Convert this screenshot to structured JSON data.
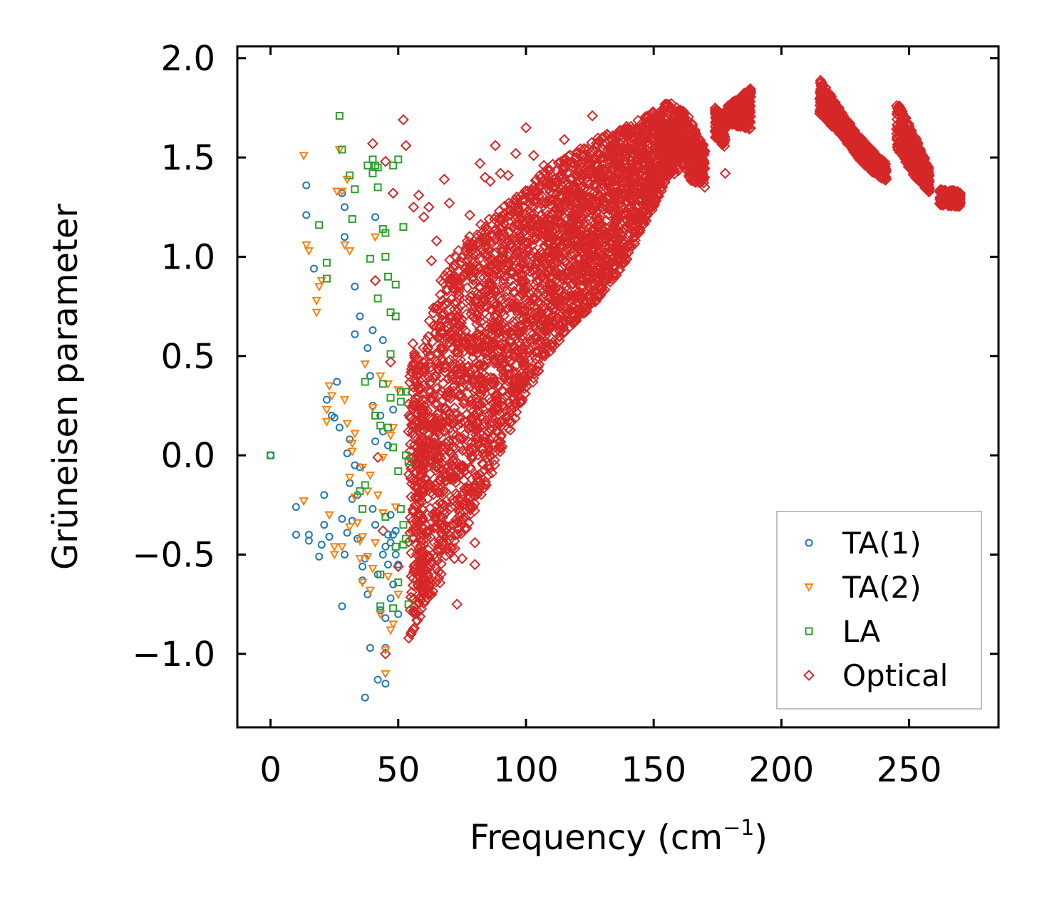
{
  "chart_data": {
    "type": "scatter",
    "title": "",
    "xlabel": "Frequency (cm",
    "xlabel_sup": "−1",
    "xlabel_suffix": ")",
    "ylabel": "Grüneisen parameter",
    "xlim": [
      -13,
      285
    ],
    "ylim": [
      -1.37,
      2.06
    ],
    "xticks": [
      0,
      50,
      100,
      150,
      200,
      250
    ],
    "xtick_labels": [
      "0",
      "50",
      "100",
      "150",
      "200",
      "250"
    ],
    "yticks": [
      -1.0,
      -0.5,
      0.0,
      0.5,
      1.0,
      1.5,
      2.0
    ],
    "ytick_labels": [
      "−1.0",
      "−0.5",
      "0.0",
      "0.5",
      "1.0",
      "1.5",
      "2.0"
    ],
    "grid": false,
    "legend_position": "bottom-right",
    "series": [
      {
        "name": "TA(1)",
        "marker": "circle",
        "color": "#1f77b4",
        "points": [
          [
            0,
            0
          ],
          [
            10,
            -0.26
          ],
          [
            10,
            -0.4
          ],
          [
            14,
            1.36
          ],
          [
            14,
            1.21
          ],
          [
            15,
            -0.4
          ],
          [
            15,
            -0.43
          ],
          [
            17,
            0.94
          ],
          [
            19,
            -0.51
          ],
          [
            20,
            -0.45
          ],
          [
            21,
            -0.2
          ],
          [
            21,
            -0.35
          ],
          [
            22,
            0.28
          ],
          [
            23,
            -0.41
          ],
          [
            24,
            0.2
          ],
          [
            25,
            0.19
          ],
          [
            26,
            0.37
          ],
          [
            27,
            0.14
          ],
          [
            28,
            -0.32
          ],
          [
            28,
            1.32
          ],
          [
            28,
            -0.76
          ],
          [
            29,
            1.25
          ],
          [
            29,
            1.1
          ],
          [
            29,
            -0.5
          ],
          [
            30,
            0.01
          ],
          [
            30,
            -0.39
          ],
          [
            31,
            0.08
          ],
          [
            31,
            -0.14
          ],
          [
            32,
            -0.33
          ],
          [
            32,
            -0.22
          ],
          [
            33,
            -0.05
          ],
          [
            33,
            0.85
          ],
          [
            33,
            0.61
          ],
          [
            34,
            -0.2
          ],
          [
            34,
            -0.42
          ],
          [
            35,
            0.7
          ],
          [
            35,
            -0.06
          ],
          [
            36,
            -0.56
          ],
          [
            36,
            -0.63
          ],
          [
            37,
            -1.22
          ],
          [
            37,
            -0.52
          ],
          [
            38,
            0.54
          ],
          [
            38,
            -0.7
          ],
          [
            39,
            0.4
          ],
          [
            39,
            -0.97
          ],
          [
            40,
            0.25
          ],
          [
            40,
            0.63
          ],
          [
            40,
            -0.27
          ],
          [
            41,
            1.2
          ],
          [
            41,
            0.07
          ],
          [
            41,
            -0.35
          ],
          [
            42,
            -0.6
          ],
          [
            42,
            -1.13
          ],
          [
            43,
            0.2
          ],
          [
            43,
            -0.78
          ],
          [
            44,
            0.58
          ],
          [
            44,
            -0.5
          ],
          [
            44,
            0.12
          ],
          [
            45,
            -0.46
          ],
          [
            45,
            -0.82
          ],
          [
            45,
            -1.15
          ],
          [
            45,
            -0.97
          ],
          [
            46,
            -0.4
          ],
          [
            46,
            -0.55
          ],
          [
            46,
            0.05
          ],
          [
            47,
            -0.3
          ],
          [
            47,
            -0.44
          ],
          [
            47,
            -0.72
          ],
          [
            48,
            -0.4
          ],
          [
            48,
            -0.65
          ],
          [
            48,
            0.23
          ],
          [
            49,
            -0.38
          ],
          [
            49,
            -0.5
          ],
          [
            50,
            -0.55
          ],
          [
            50,
            -0.8
          ]
        ]
      },
      {
        "name": "TA(2)",
        "marker": "triangle-down",
        "color": "#ff7f0e",
        "points": [
          [
            13,
            1.51
          ],
          [
            13,
            -0.23
          ],
          [
            14,
            1.06
          ],
          [
            15,
            1.03
          ],
          [
            18,
            0.72
          ],
          [
            18,
            0.78
          ],
          [
            19,
            0.85
          ],
          [
            20,
            0.88
          ],
          [
            22,
            0.17
          ],
          [
            22,
            0.23
          ],
          [
            23,
            0.35
          ],
          [
            23,
            -0.3
          ],
          [
            24,
            0.3
          ],
          [
            25,
            -0.5
          ],
          [
            25,
            -0.46
          ],
          [
            26,
            1.33
          ],
          [
            27,
            1.54
          ],
          [
            28,
            -0.46
          ],
          [
            28,
            1.33
          ],
          [
            29,
            1.06
          ],
          [
            29,
            0.28
          ],
          [
            30,
            0.16
          ],
          [
            30,
            1.39
          ],
          [
            31,
            -0.11
          ],
          [
            31,
            1.03
          ],
          [
            31,
            -0.36
          ],
          [
            32,
            0.02
          ],
          [
            32,
            0.06
          ],
          [
            33,
            0.11
          ],
          [
            33,
            -0.21
          ],
          [
            34,
            -0.34
          ],
          [
            35,
            -0.43
          ],
          [
            35,
            -0.52
          ],
          [
            36,
            -0.41
          ],
          [
            36,
            -0.06
          ],
          [
            36,
            -0.64
          ],
          [
            37,
            0.46
          ],
          [
            38,
            -0.51
          ],
          [
            38,
            -0.18
          ],
          [
            39,
            -0.1
          ],
          [
            39,
            -0.68
          ],
          [
            40,
            0.24
          ],
          [
            40,
            -0.57
          ],
          [
            41,
            -0.44
          ],
          [
            41,
            1.1
          ],
          [
            42,
            -0.2
          ],
          [
            43,
            0.4
          ],
          [
            43,
            -0.8
          ],
          [
            44,
            -0.29
          ],
          [
            44,
            -0.01
          ],
          [
            45,
            -0.98
          ],
          [
            45,
            -1.1
          ],
          [
            46,
            0.36
          ],
          [
            46,
            -0.61
          ],
          [
            47,
            -0.88
          ],
          [
            47,
            0.1
          ],
          [
            48,
            -0.85
          ],
          [
            48,
            0.14
          ],
          [
            49,
            -0.26
          ],
          [
            50,
            0.33
          ],
          [
            50,
            -0.7
          ]
        ]
      },
      {
        "name": "LA",
        "marker": "square",
        "color": "#2ca02c",
        "points": [
          [
            0,
            0
          ],
          [
            19,
            1.16
          ],
          [
            22,
            0.97
          ],
          [
            22,
            0.89
          ],
          [
            27,
            1.71
          ],
          [
            28,
            1.54
          ],
          [
            31,
            1.41
          ],
          [
            32,
            1.19
          ],
          [
            33,
            1.34
          ],
          [
            35,
            -0.18
          ],
          [
            36,
            -0.27
          ],
          [
            37,
            0.37
          ],
          [
            37,
            -0.15
          ],
          [
            38,
            1.46
          ],
          [
            39,
            0.99
          ],
          [
            40,
            1.42
          ],
          [
            40,
            1.49
          ],
          [
            41,
            1.46
          ],
          [
            41,
            0.2
          ],
          [
            42,
            1.45
          ],
          [
            42,
            0.79
          ],
          [
            42,
            1.35
          ],
          [
            43,
            -0.76
          ],
          [
            43,
            0.15
          ],
          [
            43,
            -0.6
          ],
          [
            44,
            1.14
          ],
          [
            44,
            0.36
          ],
          [
            45,
            1.0
          ],
          [
            45,
            -0.31
          ],
          [
            45,
            1.12
          ],
          [
            46,
            0.14
          ],
          [
            46,
            0.9
          ],
          [
            47,
            0.72
          ],
          [
            47,
            0.29
          ],
          [
            47,
            0.51
          ],
          [
            48,
            -0.77
          ],
          [
            48,
            0.04
          ],
          [
            48,
            1.46
          ],
          [
            49,
            0.86
          ],
          [
            49,
            -0.46
          ],
          [
            49,
            0.7
          ],
          [
            50,
            -0.64
          ],
          [
            50,
            1.49
          ],
          [
            50,
            -0.08
          ],
          [
            51,
            0.32
          ],
          [
            51,
            -0.27
          ],
          [
            51,
            0.27
          ],
          [
            52,
            -0.35
          ],
          [
            52,
            -0.45
          ],
          [
            52,
            1.15
          ],
          [
            53,
            0.0
          ],
          [
            53,
            -0.42
          ],
          [
            53,
            0.32
          ],
          [
            54,
            -0.03
          ],
          [
            54,
            -0.75
          ]
        ]
      },
      {
        "name": "Optical",
        "marker": "diamond",
        "color": "#d62728",
        "points": [
          [
            40,
            1.57
          ],
          [
            41,
            0.88
          ],
          [
            42,
            -0.01
          ],
          [
            44,
            -0.38
          ],
          [
            45,
            1.48
          ],
          [
            45,
            -1.0
          ],
          [
            47,
            0.47
          ],
          [
            48,
            1.32
          ],
          [
            50,
            -0.56
          ],
          [
            52,
            1.69
          ],
          [
            53,
            1.56
          ],
          [
            54,
            0.12
          ],
          [
            55,
            -0.9
          ],
          [
            56,
            1.25
          ],
          [
            58,
            1.31
          ],
          [
            60,
            1.2
          ],
          [
            62,
            1.25
          ],
          [
            63,
            0.98
          ],
          [
            65,
            1.08
          ],
          [
            68,
            1.39
          ],
          [
            70,
            1.27
          ],
          [
            72,
            -0.52
          ],
          [
            73,
            -0.75
          ],
          [
            75,
            -0.52
          ],
          [
            78,
            1.21
          ],
          [
            80,
            -0.44
          ],
          [
            80,
            -0.55
          ],
          [
            82,
            1.47
          ],
          [
            84,
            1.4
          ],
          [
            86,
            1.38
          ],
          [
            88,
            1.56
          ],
          [
            90,
            1.42
          ],
          [
            93,
            1.41
          ],
          [
            96,
            1.52
          ],
          [
            100,
            1.65
          ],
          [
            103,
            1.51
          ],
          [
            107,
            1.46
          ],
          [
            110,
            1.37
          ],
          [
            115,
            1.59
          ],
          [
            120,
            1.52
          ],
          [
            126,
            1.71
          ],
          [
            130,
            1.54
          ],
          [
            140,
            1.57
          ],
          [
            150,
            1.63
          ],
          [
            155,
            1.52
          ],
          [
            162,
            1.45
          ],
          [
            170,
            1.35
          ],
          [
            178,
            1.42
          ],
          [
            186,
            1.65
          ]
        ],
        "bands": [
          {
            "x": [
              54,
              60
            ],
            "y_low": [
              -0.95,
              -0.75
            ],
            "y_high": [
              0.6,
              0.5
            ]
          },
          {
            "x": [
              58,
              68,
              78,
              88,
              98,
              108,
              118,
              128,
              138,
              148,
              156,
              162
            ],
            "y_low": [
              -0.85,
              -0.6,
              -0.35,
              -0.05,
              0.25,
              0.5,
              0.65,
              0.78,
              0.95,
              1.2,
              1.4,
              1.45
            ],
            "y_high": [
              0.5,
              0.95,
              1.12,
              1.22,
              1.32,
              1.45,
              1.52,
              1.6,
              1.65,
              1.72,
              1.78,
              1.73
            ]
          },
          {
            "x": [
              163,
              170
            ],
            "y_low": [
              1.38,
              1.37
            ],
            "y_high": [
              1.72,
              1.55
            ]
          },
          {
            "x": [
              174,
              178
            ],
            "y_low": [
              1.6,
              1.55
            ],
            "y_high": [
              1.75,
              1.72
            ]
          },
          {
            "x": [
              179,
              188
            ],
            "y_low": [
              1.67,
              1.64
            ],
            "y_high": [
              1.76,
              1.85
            ]
          },
          {
            "x": [
              215,
              224,
              233,
              241
            ],
            "y_low": [
              1.72,
              1.6,
              1.45,
              1.38
            ],
            "y_high": [
              1.9,
              1.72,
              1.57,
              1.47
            ]
          },
          {
            "x": [
              245,
              252,
              258
            ],
            "y_low": [
              1.55,
              1.4,
              1.32
            ],
            "y_high": [
              1.79,
              1.62,
              1.44
            ]
          },
          {
            "x": [
              262,
              270
            ],
            "y_low": [
              1.26,
              1.25
            ],
            "y_high": [
              1.34,
              1.33
            ]
          }
        ]
      }
    ]
  }
}
